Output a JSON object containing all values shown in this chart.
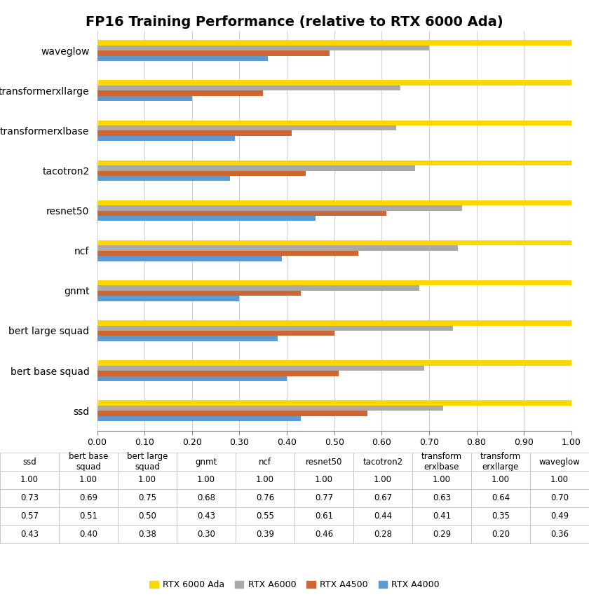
{
  "title": "FP16 Training Performance (relative to RTX 6000 Ada)",
  "categories": [
    "ssd",
    "bert base squad",
    "bert large squad",
    "gnmt",
    "ncf",
    "resnet50",
    "tacotron2",
    "transformerxlbase",
    "transformerxllarge",
    "waveglow"
  ],
  "gpus": [
    "RTX 6000 Ada",
    "RTX A6000",
    "RTX A4500",
    "RTX A4000"
  ],
  "colors": [
    "#FFD700",
    "#A9A9A9",
    "#CC6633",
    "#5B9BD5"
  ],
  "data": {
    "RTX 6000 Ada": [
      1.0,
      1.0,
      1.0,
      1.0,
      1.0,
      1.0,
      1.0,
      1.0,
      1.0,
      1.0
    ],
    "RTX A6000": [
      0.73,
      0.69,
      0.75,
      0.68,
      0.76,
      0.77,
      0.67,
      0.63,
      0.64,
      0.7
    ],
    "RTX A4500": [
      0.57,
      0.51,
      0.5,
      0.43,
      0.55,
      0.61,
      0.44,
      0.41,
      0.35,
      0.49
    ],
    "RTX A4000": [
      0.43,
      0.4,
      0.38,
      0.3,
      0.39,
      0.46,
      0.28,
      0.29,
      0.2,
      0.36
    ]
  },
  "xlim": [
    0.0,
    1.0
  ],
  "xticks": [
    0.0,
    0.1,
    0.2,
    0.3,
    0.4,
    0.5,
    0.6,
    0.7,
    0.8,
    0.9,
    1.0
  ],
  "table_col_labels": [
    "ssd",
    "bert base\nsquad",
    "bert large\nsquad",
    "gnmt",
    "ncf",
    "resnet50",
    "tacotron2",
    "transform\nerxlbase",
    "transform\nerxllarge",
    "waveglow"
  ],
  "table_row_labels": [
    "RTX 6000 Ada",
    "RTX A6000",
    "RTX A4500",
    "RTX A4000"
  ],
  "table_data": [
    [
      1.0,
      1.0,
      1.0,
      1.0,
      1.0,
      1.0,
      1.0,
      1.0,
      1.0,
      1.0
    ],
    [
      0.73,
      0.69,
      0.75,
      0.68,
      0.76,
      0.77,
      0.67,
      0.63,
      0.64,
      0.7
    ],
    [
      0.57,
      0.51,
      0.5,
      0.43,
      0.55,
      0.61,
      0.44,
      0.41,
      0.35,
      0.49
    ],
    [
      0.43,
      0.4,
      0.38,
      0.3,
      0.39,
      0.46,
      0.28,
      0.29,
      0.2,
      0.36
    ]
  ],
  "bar_height": 0.13,
  "background_color": "#FFFFFF",
  "grid_color": "#D0D0D0"
}
